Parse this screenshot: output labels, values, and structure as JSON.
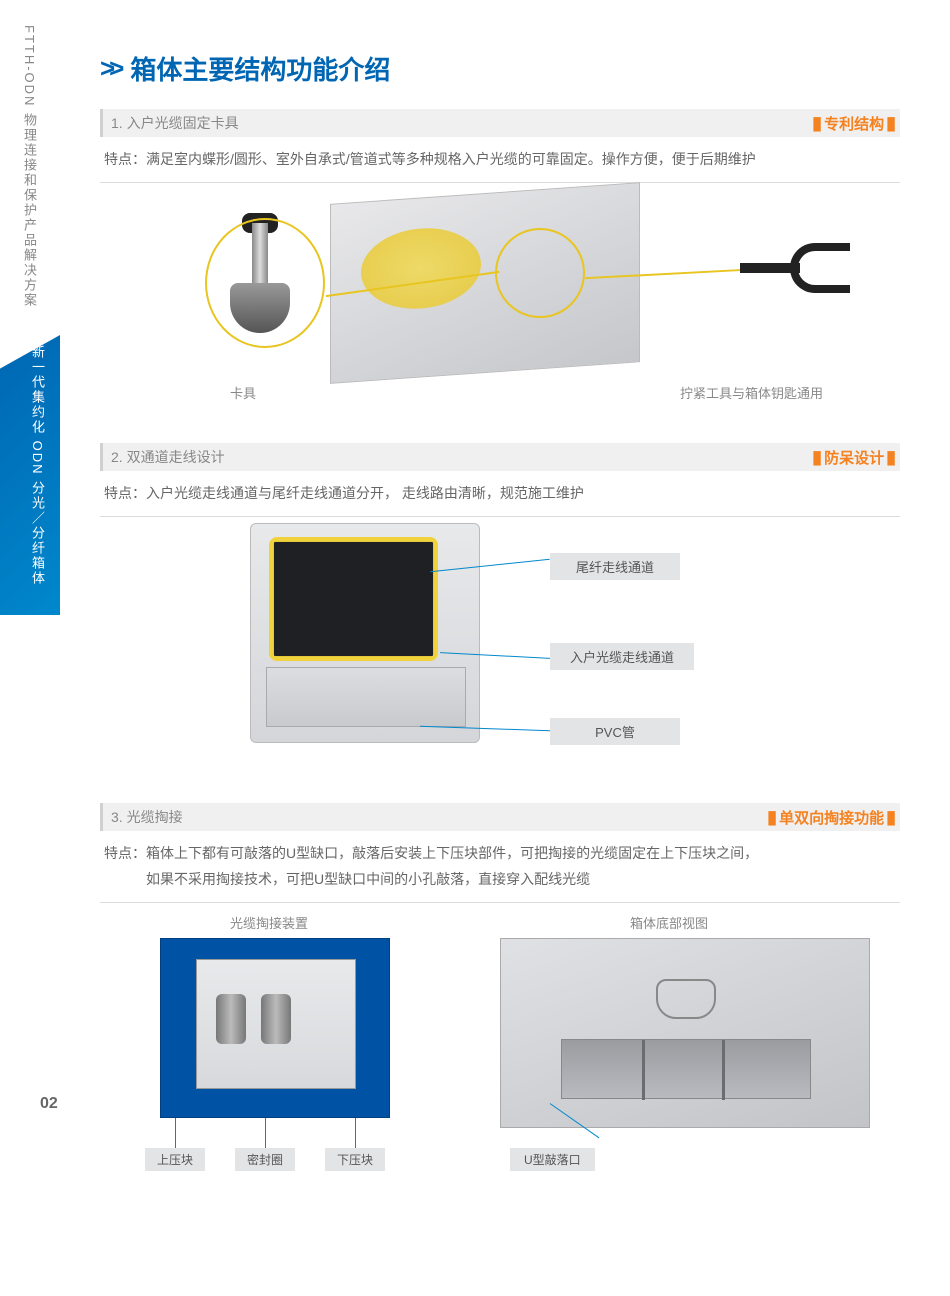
{
  "sidebar": {
    "grey_text": "FTTH-ODN 物理连接和保护产品解决方案",
    "blue_text": "新一代集约化 ODN 分光／分纤箱体"
  },
  "page_number": "02",
  "page_title": "箱体主要结构功能介绍",
  "section1": {
    "title": "1. 入户光缆固定卡具",
    "badge": "专利结构",
    "feature": "特点：满足室内蝶形/圆形、室外自承式/管道式等多种规格入户光缆的可靠固定。操作方便，便于后期维护",
    "label_left": "卡具",
    "label_right": "拧紧工具与箱体钥匙通用"
  },
  "section2": {
    "title": "2. 双通道走线设计",
    "badge": "防呆设计",
    "feature": "特点：入户光缆走线通道与尾纤走线通道分开， 走线路由清晰，规范施工维护",
    "callouts": [
      "尾纤走线通道",
      "入户光缆走线通道",
      "PVC管"
    ]
  },
  "section3": {
    "title": "3.  光缆掏接",
    "badge": "单双向掏接功能",
    "feature": "特点：箱体上下都有可敲落的U型缺口，敲落后安装上下压块部件，可把掏接的光缆固定在上下压块之间，\n　　　如果不采用掏接技术，可把U型缺口中间的小孔敲落，直接穿入配线光缆",
    "left_title": "光缆掏接装置",
    "right_title": "箱体底部视图",
    "left_labels": [
      "上压块",
      "密封圈",
      "下压块"
    ],
    "right_label": "U型敲落口"
  },
  "colors": {
    "brand_blue": "#0066b3",
    "accent_orange": "#f58220",
    "label_bg": "#e3e4e6"
  }
}
